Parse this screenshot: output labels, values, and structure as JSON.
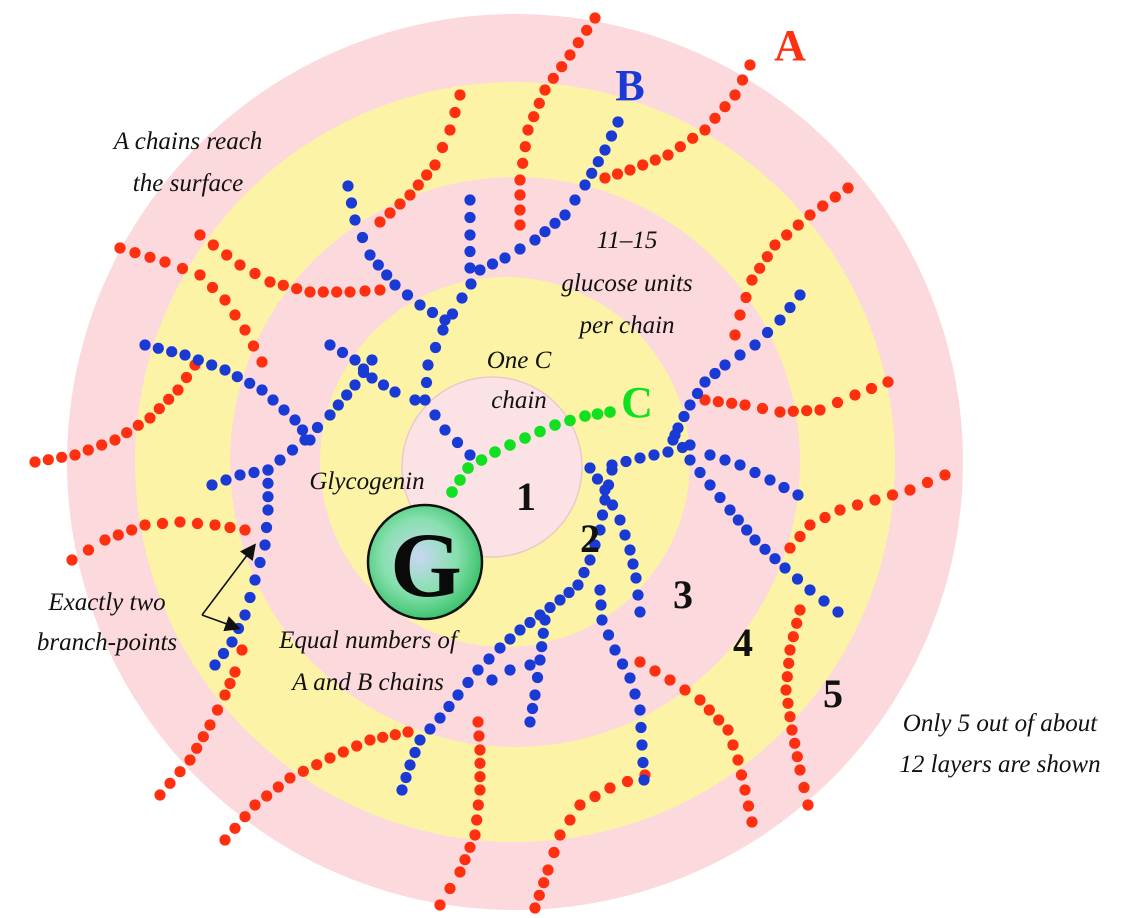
{
  "colors": {
    "outer_ring": "#fbd9dc",
    "yellow_ring": "#fcf3a6",
    "inner_pink": "#fbd9dc",
    "core": "#fbe2e5",
    "a_chain": "#ff3010",
    "b_chain": "#1a3ad6",
    "c_chain": "#10e020",
    "glycogenin": "#5ad88a"
  },
  "chain_labels": {
    "a": "A",
    "b": "B",
    "c": "C"
  },
  "glycogenin_symbol": "G",
  "layer_numbers": [
    "1",
    "2",
    "3",
    "4",
    "5"
  ],
  "annotations": {
    "a_chains_line1": "A chains reach",
    "a_chains_line2": "the surface",
    "units_line1": "11–15",
    "units_line2": "glucose units",
    "units_line3": "per chain",
    "c_chain_line1": "One C",
    "c_chain_line2": "chain",
    "glycogenin": "Glycogenin",
    "branch_line1": "Exactly two",
    "branch_line2": "branch-points",
    "equal_line1": "Equal numbers of",
    "equal_line2": "A and B chains",
    "layers_line1": "Only  5 out of about",
    "layers_line2": "12 layers are shown"
  }
}
